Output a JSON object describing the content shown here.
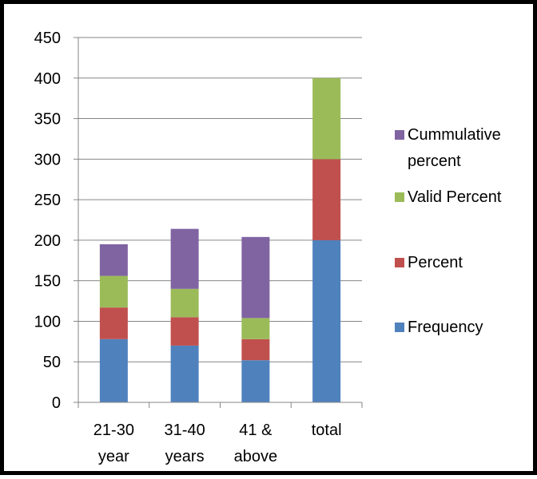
{
  "chart_data": {
    "type": "bar",
    "stacked": true,
    "categories": [
      [
        "21-30",
        "year"
      ],
      [
        "31-40",
        "years"
      ],
      [
        "41 &",
        "above"
      ],
      [
        "total"
      ]
    ],
    "series": [
      {
        "name": "Frequency",
        "color": "#4f81bd",
        "values": [
          78,
          70,
          52,
          200
        ]
      },
      {
        "name": "Percent",
        "color": "#c0504d",
        "values": [
          39,
          35,
          26,
          100
        ]
      },
      {
        "name": "Valid Percent",
        "color": "#9bbb59",
        "values": [
          39,
          35,
          26,
          100
        ]
      },
      {
        "name": "Cummulative percent",
        "color": "#8064a2",
        "values": [
          39,
          74,
          100,
          0
        ]
      }
    ],
    "legend_order": [
      3,
      2,
      1,
      0
    ],
    "legend_labels": [
      [
        "Cummulative",
        "percent"
      ],
      [
        "Valid Percent"
      ],
      [
        "Percent"
      ],
      [
        "Frequency"
      ]
    ],
    "ylim": [
      0,
      450
    ],
    "yticks": [
      0,
      50,
      100,
      150,
      200,
      250,
      300,
      350,
      400,
      450
    ],
    "grid": true,
    "legend_position": "right"
  }
}
